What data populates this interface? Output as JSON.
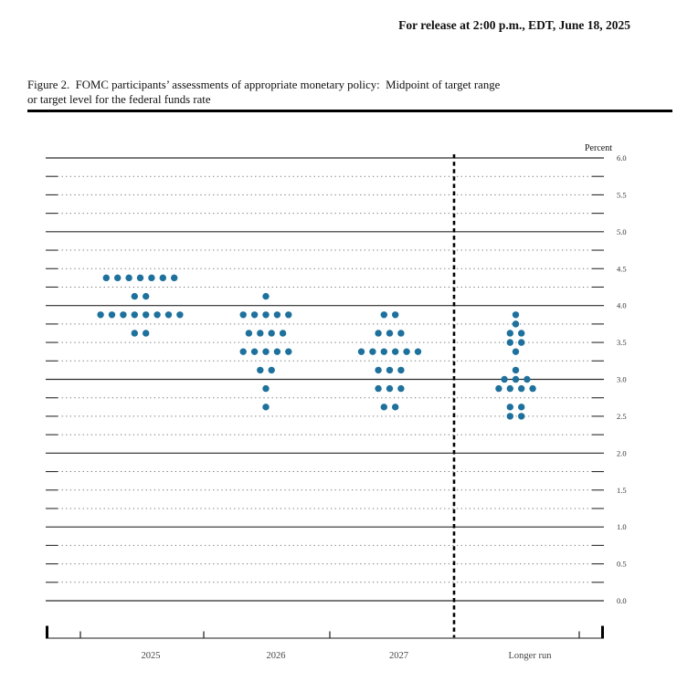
{
  "header": {
    "release_line": "For release at 2:00 p.m., EDT, June 18, 2025"
  },
  "figure": {
    "title_line1": "Figure 2.  FOMC participants’ assessments of appropriate monetary policy:  Midpoint of target range",
    "title_line2": "or target level for the federal funds rate"
  },
  "chart_data": {
    "type": "scatter",
    "subtype": "fomc-dot-plot",
    "title": "FOMC participants’ assessments of appropriate monetary policy: Midpoint of target range or target level for the federal funds rate",
    "xlabel": "",
    "ylabel": "Percent",
    "grid": "dotted-every-quarter-solid-every-integer",
    "legend": null,
    "y_axis": {
      "min": 0.0,
      "max": 6.0,
      "grid_step": 0.25,
      "label_step": 0.5,
      "tick_labels": [
        {
          "value": 6.0,
          "label": "6.0"
        },
        {
          "value": 5.5,
          "label": "5.5"
        },
        {
          "value": 5.0,
          "label": "5.0"
        },
        {
          "value": 4.5,
          "label": "4.5"
        },
        {
          "value": 4.0,
          "label": "4.0"
        },
        {
          "value": 3.5,
          "label": "3.5"
        },
        {
          "value": 3.0,
          "label": "3.0"
        },
        {
          "value": 2.5,
          "label": "2.5"
        },
        {
          "value": 2.0,
          "label": "2.0"
        },
        {
          "value": 1.5,
          "label": "1.5"
        },
        {
          "value": 1.0,
          "label": "1.0"
        },
        {
          "value": 0.5,
          "label": "0.5"
        },
        {
          "value": 0.0,
          "label": "0.0"
        }
      ]
    },
    "columns": [
      {
        "label": "2025",
        "dots": [
          {
            "rate": 4.375,
            "count": 7
          },
          {
            "rate": 4.125,
            "count": 2
          },
          {
            "rate": 3.875,
            "count": 8
          },
          {
            "rate": 3.625,
            "count": 2
          }
        ]
      },
      {
        "label": "2026",
        "dots": [
          {
            "rate": 4.125,
            "count": 1
          },
          {
            "rate": 3.875,
            "count": 5
          },
          {
            "rate": 3.625,
            "count": 4
          },
          {
            "rate": 3.375,
            "count": 5
          },
          {
            "rate": 3.125,
            "count": 2
          },
          {
            "rate": 2.875,
            "count": 1
          },
          {
            "rate": 2.625,
            "count": 1
          }
        ]
      },
      {
        "label": "2027",
        "dots": [
          {
            "rate": 3.875,
            "count": 2
          },
          {
            "rate": 3.625,
            "count": 3
          },
          {
            "rate": 3.375,
            "count": 6
          },
          {
            "rate": 3.125,
            "count": 3
          },
          {
            "rate": 2.875,
            "count": 3
          },
          {
            "rate": 2.625,
            "count": 2
          }
        ]
      },
      {
        "label": "Longer run",
        "dots": [
          {
            "rate": 3.875,
            "count": 1
          },
          {
            "rate": 3.75,
            "count": 1
          },
          {
            "rate": 3.625,
            "count": 2
          },
          {
            "rate": 3.5,
            "count": 2
          },
          {
            "rate": 3.375,
            "count": 1
          },
          {
            "rate": 3.125,
            "count": 1
          },
          {
            "rate": 3.0,
            "count": 3
          },
          {
            "rate": 2.875,
            "count": 4
          },
          {
            "rate": 2.625,
            "count": 2
          },
          {
            "rate": 2.5,
            "count": 2
          }
        ]
      }
    ],
    "separator": {
      "type": "dashed-vertical-line",
      "between": [
        "2027",
        "Longer run"
      ]
    },
    "colors": {
      "dot": "#1E719C",
      "solid_grid": "#2b2b2b",
      "dotted_grid": "#6e6e6e",
      "axis_line": "#666666",
      "separator": "#000000",
      "tick_label_text": "#333333",
      "column_label_text": "#444444"
    }
  }
}
